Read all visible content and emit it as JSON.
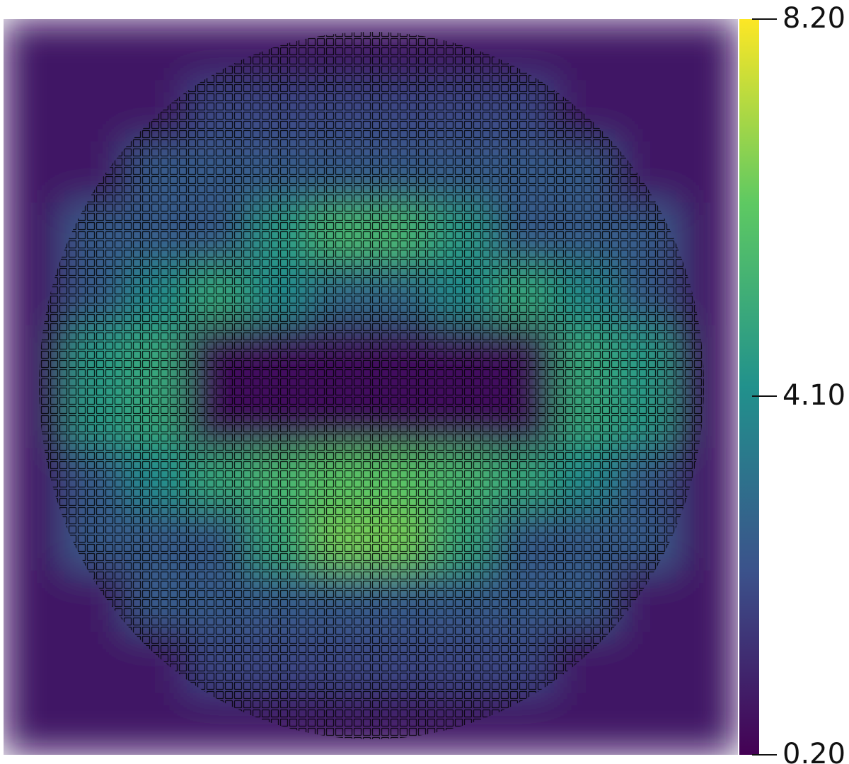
{
  "chart_data": {
    "type": "heatmap",
    "z": [
      [
        0.8,
        0.8,
        0.8,
        0.8,
        0.8,
        0.8,
        0.8,
        0.8,
        0.8,
        0.8,
        0.8,
        0.8
      ],
      [
        0.8,
        0.8,
        0.8,
        2.0,
        2.0,
        2.0,
        2.0,
        2.0,
        2.0,
        0.8,
        0.8,
        0.8
      ],
      [
        0.8,
        0.8,
        2.5,
        2.5,
        2.5,
        2.5,
        2.5,
        2.5,
        2.5,
        2.5,
        0.8,
        0.8
      ],
      [
        0.8,
        2.5,
        2.5,
        2.5,
        4.5,
        5.5,
        5.5,
        4.5,
        2.5,
        2.5,
        2.5,
        0.8
      ],
      [
        0.8,
        2.5,
        4.0,
        5.0,
        4.0,
        3.0,
        3.0,
        4.0,
        5.0,
        4.0,
        2.5,
        0.8
      ],
      [
        0.8,
        4.5,
        5.0,
        0.6,
        0.6,
        0.6,
        0.6,
        0.6,
        0.6,
        5.0,
        4.5,
        0.8
      ],
      [
        0.8,
        4.5,
        5.0,
        0.6,
        0.6,
        0.6,
        0.6,
        0.6,
        0.6,
        5.0,
        4.5,
        0.8
      ],
      [
        0.8,
        2.5,
        4.0,
        5.0,
        5.5,
        6.0,
        6.0,
        5.5,
        5.0,
        4.0,
        2.5,
        0.8
      ],
      [
        0.8,
        2.5,
        2.5,
        2.5,
        5.0,
        6.5,
        6.5,
        5.0,
        2.5,
        2.5,
        2.5,
        0.8
      ],
      [
        0.8,
        0.8,
        2.5,
        2.5,
        2.5,
        2.5,
        2.5,
        2.5,
        2.5,
        2.5,
        0.8,
        0.8
      ],
      [
        0.8,
        0.8,
        0.8,
        2.0,
        2.0,
        2.0,
        2.0,
        2.0,
        2.0,
        0.8,
        0.8,
        0.8
      ],
      [
        0.8,
        0.8,
        0.8,
        0.8,
        0.8,
        0.8,
        0.8,
        0.8,
        0.8,
        0.8,
        0.8,
        0.8
      ]
    ],
    "colorscale": [
      "#440154",
      "#3b528b",
      "#21918c",
      "#5ec962",
      "#fde725"
    ],
    "zlim": [
      0.2,
      8.2
    ],
    "zticks": [
      {
        "value": 0.2,
        "label": "0.20"
      },
      {
        "value": 4.1,
        "label": "4.10"
      },
      {
        "value": 8.2,
        "label": "8.20"
      }
    ]
  }
}
